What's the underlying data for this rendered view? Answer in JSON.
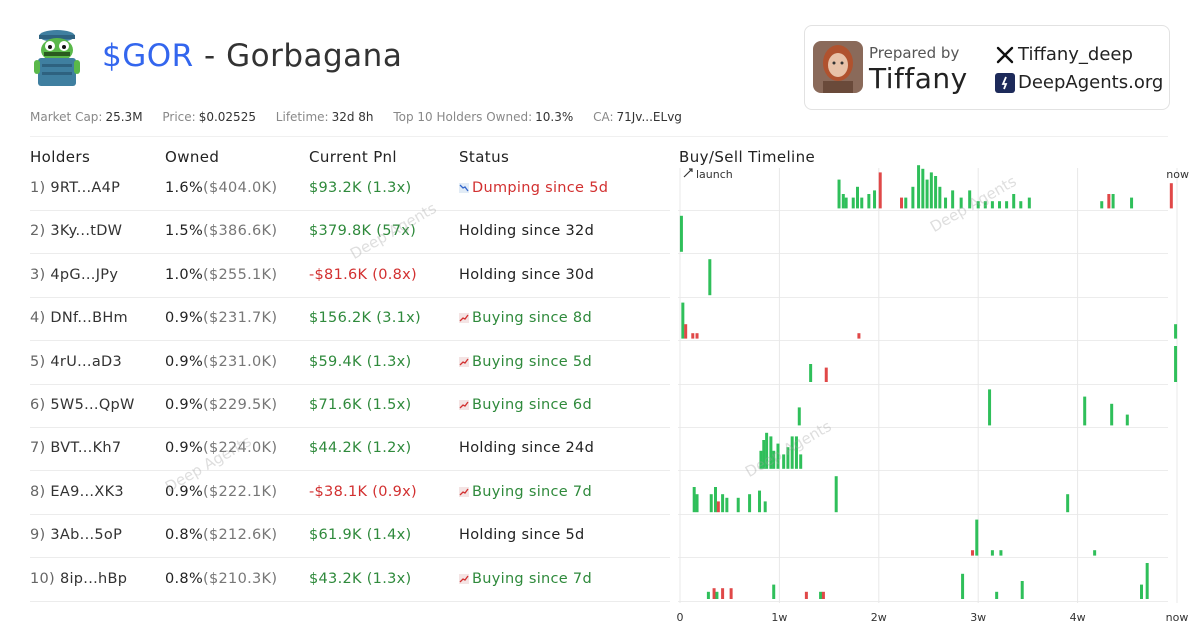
{
  "header": {
    "ticker": "$GOR",
    "separator": " - ",
    "name": "Gorbagana"
  },
  "card": {
    "prepared_by_label": "Prepared by",
    "prepared_by_name": "Tiffany",
    "twitter_handle": "Tiffany_deep",
    "website": "DeepAgents.org"
  },
  "stats": {
    "market_cap_label": "Market Cap:",
    "market_cap": "25.3M",
    "price_label": "Price:",
    "price": "$0.02525",
    "lifetime_label": "Lifetime:",
    "lifetime": "32d 8h",
    "top10_label": "Top 10 Holders Owned:",
    "top10": "10.3%",
    "ca_label": "CA:",
    "ca": "71Jv...ELvg"
  },
  "columns": {
    "holders": "Holders",
    "owned": "Owned",
    "pnl": "Current Pnl",
    "status": "Status",
    "timeline": "Buy/Sell Timeline"
  },
  "watermark": "Deep Agents",
  "holders": [
    {
      "idx": "1)",
      "addr": "9RT...A4P",
      "pct": "1.6%",
      "usd": "($404.0K)",
      "pnl": "$93.2K (1.3x)",
      "pnl_sign": "pos",
      "status": "Dumping since 5d",
      "status_type": "dump"
    },
    {
      "idx": "2)",
      "addr": "3Ky...tDW",
      "pct": "1.5%",
      "usd": "($386.6K)",
      "pnl": "$379.8K (57x)",
      "pnl_sign": "pos",
      "status": "Holding since 32d",
      "status_type": "hold"
    },
    {
      "idx": "3)",
      "addr": "4pG...JPy",
      "pct": "1.0%",
      "usd": "($255.1K)",
      "pnl": "-$81.6K (0.8x)",
      "pnl_sign": "neg",
      "status": "Holding since 30d",
      "status_type": "hold"
    },
    {
      "idx": "4)",
      "addr": "DNf...BHm",
      "pct": "0.9%",
      "usd": "($231.7K)",
      "pnl": "$156.2K (3.1x)",
      "pnl_sign": "pos",
      "status": "Buying since 8d",
      "status_type": "buy"
    },
    {
      "idx": "5)",
      "addr": "4rU...aD3",
      "pct": "0.9%",
      "usd": "($231.0K)",
      "pnl": "$59.4K (1.3x)",
      "pnl_sign": "pos",
      "status": "Buying since 5d",
      "status_type": "buy"
    },
    {
      "idx": "6)",
      "addr": "5W5...QpW",
      "pct": "0.9%",
      "usd": "($229.5K)",
      "pnl": "$71.6K (1.5x)",
      "pnl_sign": "pos",
      "status": "Buying since 6d",
      "status_type": "buy"
    },
    {
      "idx": "7)",
      "addr": "BVT...Kh7",
      "pct": "0.9%",
      "usd": "($224.0K)",
      "pnl": "$44.2K (1.2x)",
      "pnl_sign": "pos",
      "status": "Holding since 24d",
      "status_type": "hold"
    },
    {
      "idx": "8)",
      "addr": "EA9...XK3",
      "pct": "0.9%",
      "usd": "($222.1K)",
      "pnl": "-$38.1K (0.9x)",
      "pnl_sign": "neg",
      "status": "Buying since 7d",
      "status_type": "buy"
    },
    {
      "idx": "9)",
      "addr": "3Ab...5oP",
      "pct": "0.8%",
      "usd": "($212.6K)",
      "pnl": "$61.9K (1.4x)",
      "pnl_sign": "pos",
      "status": "Holding since 5d",
      "status_type": "hold"
    },
    {
      "idx": "10)",
      "addr": "8ip...hBp",
      "pct": "0.8%",
      "usd": "($210.3K)",
      "pnl": "$43.2K (1.3x)",
      "pnl_sign": "pos",
      "status": "Buying since 7d",
      "status_type": "buy"
    }
  ],
  "colors": {
    "buy": "#2fbf5a",
    "sell": "#e04848",
    "ticker": "#3366ee",
    "pos_text": "#2f8a3c",
    "neg_text": "#d23030",
    "grid": "#e8e8e8"
  },
  "chart_data": {
    "type": "bar",
    "title": "Buy/Sell Timeline",
    "x_unit": "days since launch",
    "xlim": [
      0,
      35
    ],
    "x_ticks": [
      {
        "x": 0,
        "label": "0"
      },
      {
        "x": 7,
        "label": "1w"
      },
      {
        "x": 14,
        "label": "2w"
      },
      {
        "x": 21,
        "label": "3w"
      },
      {
        "x": 28,
        "label": "4w"
      },
      {
        "x": 35,
        "label": "now"
      }
    ],
    "start_label": "launch",
    "end_label": "now",
    "rows": [
      {
        "holder": "9RT...A4P",
        "trades": [
          {
            "x": 11.2,
            "v": 0.8,
            "t": "buy"
          },
          {
            "x": 11.5,
            "v": 0.4,
            "t": "buy"
          },
          {
            "x": 11.7,
            "v": 0.3,
            "t": "buy"
          },
          {
            "x": 12.2,
            "v": 0.3,
            "t": "buy"
          },
          {
            "x": 12.5,
            "v": 0.6,
            "t": "buy"
          },
          {
            "x": 12.8,
            "v": 0.3,
            "t": "buy"
          },
          {
            "x": 13.3,
            "v": 0.4,
            "t": "buy"
          },
          {
            "x": 13.7,
            "v": 0.5,
            "t": "buy"
          },
          {
            "x": 14.1,
            "v": 1.0,
            "t": "sell"
          },
          {
            "x": 15.6,
            "v": 0.3,
            "t": "sell"
          },
          {
            "x": 15.9,
            "v": 0.3,
            "t": "buy"
          },
          {
            "x": 16.4,
            "v": 0.6,
            "t": "buy"
          },
          {
            "x": 16.8,
            "v": 1.2,
            "t": "buy"
          },
          {
            "x": 17.1,
            "v": 1.1,
            "t": "buy"
          },
          {
            "x": 17.4,
            "v": 0.8,
            "t": "buy"
          },
          {
            "x": 17.7,
            "v": 1.0,
            "t": "buy"
          },
          {
            "x": 18.0,
            "v": 0.9,
            "t": "buy"
          },
          {
            "x": 18.3,
            "v": 0.6,
            "t": "buy"
          },
          {
            "x": 18.7,
            "v": 0.3,
            "t": "buy"
          },
          {
            "x": 19.2,
            "v": 0.5,
            "t": "buy"
          },
          {
            "x": 19.8,
            "v": 0.3,
            "t": "buy"
          },
          {
            "x": 20.4,
            "v": 0.5,
            "t": "buy"
          },
          {
            "x": 21.0,
            "v": 0.2,
            "t": "buy"
          },
          {
            "x": 21.5,
            "v": 0.2,
            "t": "buy"
          },
          {
            "x": 22.0,
            "v": 0.2,
            "t": "buy"
          },
          {
            "x": 22.5,
            "v": 0.2,
            "t": "buy"
          },
          {
            "x": 23.0,
            "v": 0.2,
            "t": "buy"
          },
          {
            "x": 23.5,
            "v": 0.4,
            "t": "buy"
          },
          {
            "x": 24.0,
            "v": 0.2,
            "t": "buy"
          },
          {
            "x": 24.6,
            "v": 0.3,
            "t": "buy"
          },
          {
            "x": 29.7,
            "v": 0.2,
            "t": "buy"
          },
          {
            "x": 30.2,
            "v": 0.4,
            "t": "sell"
          },
          {
            "x": 30.5,
            "v": 0.4,
            "t": "buy"
          },
          {
            "x": 31.8,
            "v": 0.3,
            "t": "buy"
          },
          {
            "x": 34.6,
            "v": 0.7,
            "t": "sell"
          }
        ]
      },
      {
        "holder": "3Ky...tDW",
        "trades": [
          {
            "x": 0.1,
            "v": 1.0,
            "t": "buy"
          }
        ]
      },
      {
        "holder": "4pG...JPy",
        "trades": [
          {
            "x": 2.1,
            "v": 1.0,
            "t": "buy"
          }
        ]
      },
      {
        "holder": "DNf...BHm",
        "trades": [
          {
            "x": 0.2,
            "v": 1.0,
            "t": "buy"
          },
          {
            "x": 0.4,
            "v": 0.4,
            "t": "sell"
          },
          {
            "x": 0.9,
            "v": 0.15,
            "t": "sell"
          },
          {
            "x": 1.2,
            "v": 0.15,
            "t": "sell"
          },
          {
            "x": 12.6,
            "v": 0.15,
            "t": "sell"
          },
          {
            "x": 34.9,
            "v": 0.4,
            "t": "buy"
          }
        ]
      },
      {
        "holder": "4rU...aD3",
        "trades": [
          {
            "x": 9.2,
            "v": 0.5,
            "t": "buy"
          },
          {
            "x": 10.3,
            "v": 0.4,
            "t": "sell"
          },
          {
            "x": 34.9,
            "v": 1.0,
            "t": "buy"
          }
        ]
      },
      {
        "holder": "5W5...QpW",
        "trades": [
          {
            "x": 8.4,
            "v": 0.5,
            "t": "buy"
          },
          {
            "x": 21.8,
            "v": 1.0,
            "t": "buy"
          },
          {
            "x": 28.5,
            "v": 0.8,
            "t": "buy"
          },
          {
            "x": 30.4,
            "v": 0.6,
            "t": "buy"
          },
          {
            "x": 31.5,
            "v": 0.3,
            "t": "buy"
          }
        ]
      },
      {
        "holder": "BVT...Kh7",
        "trades": [
          {
            "x": 5.7,
            "v": 0.5,
            "t": "buy"
          },
          {
            "x": 5.9,
            "v": 0.8,
            "t": "buy"
          },
          {
            "x": 6.1,
            "v": 1.0,
            "t": "buy"
          },
          {
            "x": 6.4,
            "v": 0.9,
            "t": "buy"
          },
          {
            "x": 6.6,
            "v": 0.5,
            "t": "buy"
          },
          {
            "x": 6.9,
            "v": 0.7,
            "t": "buy"
          },
          {
            "x": 7.3,
            "v": 0.4,
            "t": "buy"
          },
          {
            "x": 7.6,
            "v": 0.6,
            "t": "buy"
          },
          {
            "x": 7.9,
            "v": 0.9,
            "t": "buy"
          },
          {
            "x": 8.2,
            "v": 0.9,
            "t": "buy"
          },
          {
            "x": 8.5,
            "v": 0.4,
            "t": "buy"
          }
        ]
      },
      {
        "holder": "EA9...XK3",
        "trades": [
          {
            "x": 1.0,
            "v": 0.7,
            "t": "buy"
          },
          {
            "x": 1.2,
            "v": 0.5,
            "t": "buy"
          },
          {
            "x": 2.2,
            "v": 0.5,
            "t": "buy"
          },
          {
            "x": 2.5,
            "v": 0.7,
            "t": "buy"
          },
          {
            "x": 2.7,
            "v": 0.3,
            "t": "sell"
          },
          {
            "x": 3.0,
            "v": 0.5,
            "t": "buy"
          },
          {
            "x": 3.3,
            "v": 0.4,
            "t": "buy"
          },
          {
            "x": 4.1,
            "v": 0.4,
            "t": "buy"
          },
          {
            "x": 4.9,
            "v": 0.5,
            "t": "buy"
          },
          {
            "x": 5.6,
            "v": 0.6,
            "t": "buy"
          },
          {
            "x": 6.0,
            "v": 0.3,
            "t": "buy"
          },
          {
            "x": 11.0,
            "v": 1.0,
            "t": "buy"
          },
          {
            "x": 27.3,
            "v": 0.5,
            "t": "buy"
          }
        ]
      },
      {
        "holder": "3Ab...5oP",
        "trades": [
          {
            "x": 20.6,
            "v": 0.15,
            "t": "sell"
          },
          {
            "x": 20.9,
            "v": 1.0,
            "t": "buy"
          },
          {
            "x": 22.0,
            "v": 0.15,
            "t": "buy"
          },
          {
            "x": 22.6,
            "v": 0.15,
            "t": "buy"
          },
          {
            "x": 29.2,
            "v": 0.15,
            "t": "buy"
          }
        ]
      },
      {
        "holder": "8ip...hBp",
        "trades": [
          {
            "x": 2.0,
            "v": 0.2,
            "t": "buy"
          },
          {
            "x": 2.4,
            "v": 0.3,
            "t": "sell"
          },
          {
            "x": 2.6,
            "v": 0.2,
            "t": "buy"
          },
          {
            "x": 3.0,
            "v": 0.3,
            "t": "sell"
          },
          {
            "x": 3.6,
            "v": 0.3,
            "t": "sell"
          },
          {
            "x": 6.6,
            "v": 0.4,
            "t": "buy"
          },
          {
            "x": 8.9,
            "v": 0.2,
            "t": "sell"
          },
          {
            "x": 9.9,
            "v": 0.2,
            "t": "buy"
          },
          {
            "x": 10.1,
            "v": 0.2,
            "t": "sell"
          },
          {
            "x": 19.9,
            "v": 0.7,
            "t": "buy"
          },
          {
            "x": 22.3,
            "v": 0.2,
            "t": "buy"
          },
          {
            "x": 24.1,
            "v": 0.5,
            "t": "buy"
          },
          {
            "x": 32.5,
            "v": 0.4,
            "t": "buy"
          },
          {
            "x": 32.9,
            "v": 1.0,
            "t": "buy"
          }
        ]
      }
    ]
  }
}
